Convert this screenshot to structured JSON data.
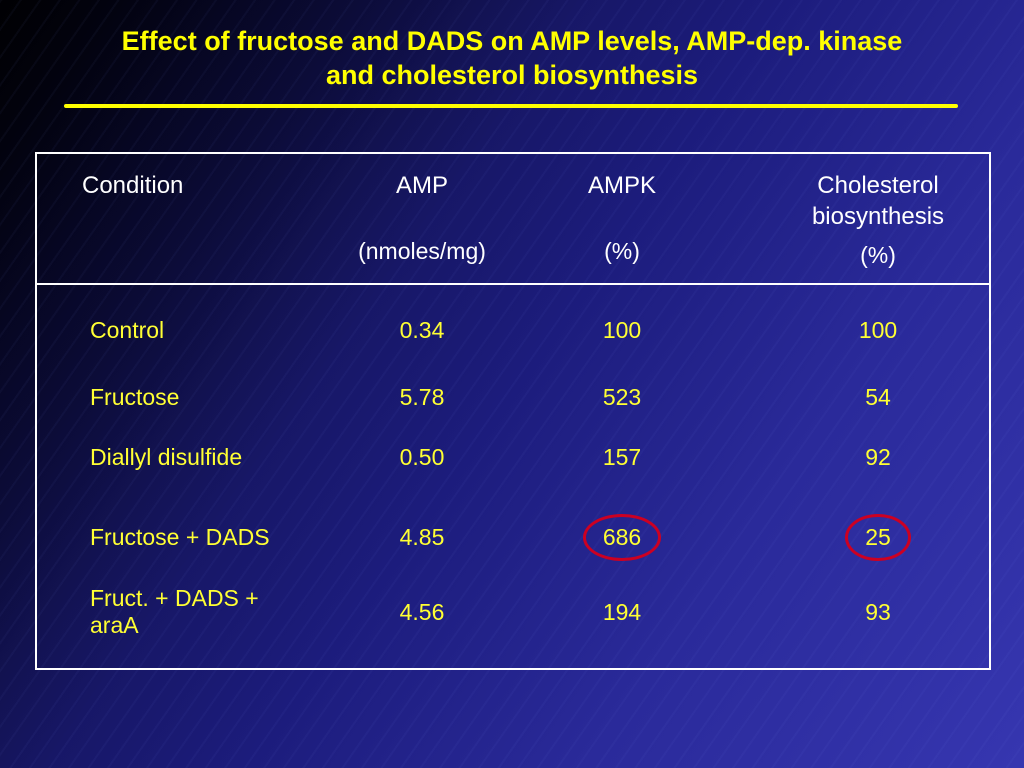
{
  "slide": {
    "title_line1": "Effect of fructose and DADS on AMP levels, AMP-dep. kinase",
    "title_line2": "and cholesterol biosynthesis"
  },
  "table": {
    "header": {
      "condition": "Condition",
      "amp": "AMP",
      "amp_unit": "(nmoles/mg)",
      "ampk": "AMPK",
      "ampk_unit": "(%)",
      "cholesterol_line1": "Cholesterol",
      "cholesterol_line2": "biosynthesis",
      "cholesterol_unit": "(%)"
    },
    "rows": [
      {
        "condition": "Control",
        "amp": "0.34",
        "ampk": "100",
        "cholesterol": "100"
      },
      {
        "condition": "Fructose",
        "amp": "5.78",
        "ampk": "523",
        "cholesterol": "54"
      },
      {
        "condition": "Diallyl disulfide",
        "amp": "0.50",
        "ampk": "157",
        "cholesterol": "92"
      },
      {
        "condition": "Fructose + DADS",
        "amp": "4.85",
        "ampk": "686",
        "cholesterol": "25"
      },
      {
        "condition": "Fruct. + DADS + araA",
        "amp": "4.56",
        "ampk": "194",
        "cholesterol": "93"
      }
    ],
    "annotations": {
      "circled_values": [
        "686",
        "25"
      ],
      "circled_row": "Fructose + DADS"
    }
  },
  "colors": {
    "title_text": "#ffff00",
    "body_text": "#ffff33",
    "header_text": "#ffffff",
    "accent_line": "#ffff00",
    "table_border": "#ffffff",
    "circle_red": "#cc0022",
    "bg_dark": "#010109",
    "bg_mid": "#1c1c7c",
    "bg_light": "#3636b0"
  }
}
